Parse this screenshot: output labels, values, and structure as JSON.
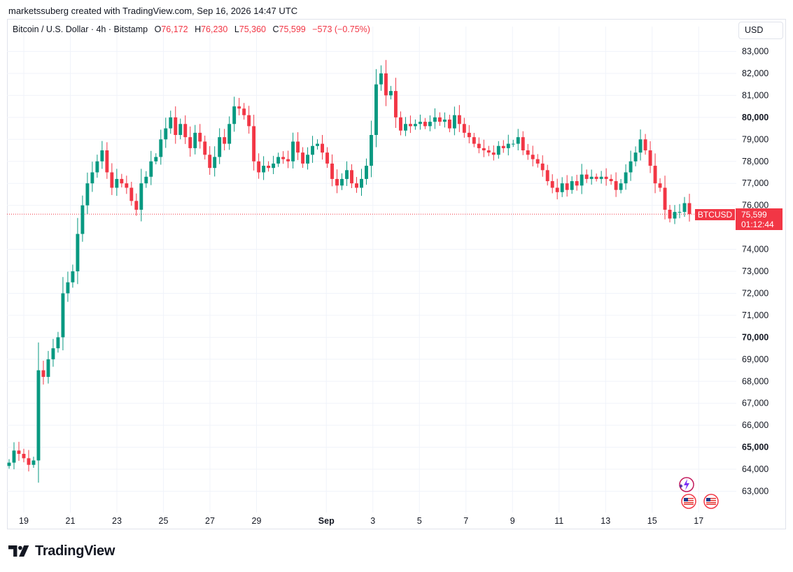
{
  "attribution": "marketssuberg created with TradingView.com, Sep 16, 2026 14:47 UTC",
  "legend": {
    "symbol": "Bitcoin / U.S. Dollar · 4h · Bitstamp",
    "o_label": "O",
    "o": "76,172",
    "h_label": "H",
    "h": "76,230",
    "l_label": "L",
    "l": "75,360",
    "c_label": "C",
    "c": "75,599",
    "change": "−573 (−0.75%)"
  },
  "currency_button": "USD",
  "brand": "TradingView",
  "last_price": {
    "symbol": "BTCUSD",
    "price": "75,599",
    "countdown": "01:12:44"
  },
  "colors": {
    "up": "#089981",
    "down": "#f23645",
    "grid": "#f0f3fa",
    "text": "#131722"
  },
  "icons": [
    "lightning-event-icon",
    "us-flag-event-icon",
    "us-flag-event-icon"
  ],
  "chart_data": {
    "type": "candlestick",
    "title": "Bitcoin / U.S. Dollar · 4h · Bitstamp",
    "ylim": [
      62200,
      83600
    ],
    "last_price_value": 75599,
    "y_ticks": [
      {
        "value": 83000,
        "label": "83,000",
        "bold": false
      },
      {
        "value": 82000,
        "label": "82,000",
        "bold": false
      },
      {
        "value": 81000,
        "label": "81,000",
        "bold": false
      },
      {
        "value": 80000,
        "label": "80,000",
        "bold": true
      },
      {
        "value": 79000,
        "label": "79,000",
        "bold": false
      },
      {
        "value": 78000,
        "label": "78,000",
        "bold": false
      },
      {
        "value": 77000,
        "label": "77,000",
        "bold": false
      },
      {
        "value": 76000,
        "label": "76,000",
        "bold": false
      },
      {
        "value": 74000,
        "label": "74,000",
        "bold": false
      },
      {
        "value": 73000,
        "label": "73,000",
        "bold": false
      },
      {
        "value": 72000,
        "label": "72,000",
        "bold": false
      },
      {
        "value": 71000,
        "label": "71,000",
        "bold": false
      },
      {
        "value": 70000,
        "label": "70,000",
        "bold": true
      },
      {
        "value": 69000,
        "label": "69,000",
        "bold": false
      },
      {
        "value": 68000,
        "label": "68,000",
        "bold": false
      },
      {
        "value": 67000,
        "label": "67,000",
        "bold": false
      },
      {
        "value": 66000,
        "label": "66,000",
        "bold": false
      },
      {
        "value": 65000,
        "label": "65,000",
        "bold": true
      },
      {
        "value": 64000,
        "label": "64,000",
        "bold": false
      },
      {
        "value": 63000,
        "label": "63,000",
        "bold": false
      }
    ],
    "x_ticks": [
      {
        "day": 1,
        "label": "19",
        "bold": false
      },
      {
        "day": 3,
        "label": "21",
        "bold": false
      },
      {
        "day": 5,
        "label": "23",
        "bold": false
      },
      {
        "day": 7,
        "label": "25",
        "bold": false
      },
      {
        "day": 9,
        "label": "27",
        "bold": false
      },
      {
        "day": 11,
        "label": "29",
        "bold": false
      },
      {
        "day": 14,
        "label": "Sep",
        "bold": true
      },
      {
        "day": 16,
        "label": "3",
        "bold": false
      },
      {
        "day": 18,
        "label": "5",
        "bold": false
      },
      {
        "day": 20,
        "label": "7",
        "bold": false
      },
      {
        "day": 22,
        "label": "9",
        "bold": false
      },
      {
        "day": 24,
        "label": "11",
        "bold": false
      },
      {
        "day": 26,
        "label": "13",
        "bold": false
      },
      {
        "day": 28,
        "label": "15",
        "bold": false
      },
      {
        "day": 30,
        "label": "17",
        "bold": false
      }
    ],
    "closes": [
      64300,
      64850,
      64700,
      64500,
      64200,
      64400,
      68500,
      68200,
      69000,
      69500,
      70000,
      72000,
      72500,
      73000,
      74700,
      76000,
      77000,
      77500,
      78000,
      78500,
      77500,
      76800,
      77200,
      77000,
      76800,
      76200,
      75800,
      77000,
      77300,
      78000,
      78200,
      79000,
      79500,
      80000,
      79200,
      79700,
      79100,
      78600,
      79300,
      78900,
      78300,
      77700,
      78200,
      79100,
      78800,
      79700,
      80500,
      80400,
      80100,
      79600,
      78000,
      77500,
      77800,
      77700,
      77900,
      78200,
      78100,
      78000,
      78900,
      78400,
      77900,
      78300,
      78700,
      78800,
      78400,
      77900,
      77200,
      76900,
      77200,
      77600,
      77000,
      76800,
      77200,
      77800,
      79200,
      81500,
      82000,
      81000,
      81200,
      80000,
      79400,
      79700,
      79600,
      79700,
      79800,
      79600,
      79800,
      80000,
      79800,
      79900,
      79500,
      80100,
      79700,
      79300,
      79100,
      78800,
      78600,
      78500,
      78400,
      78300,
      78700,
      78600,
      78800,
      78800,
      79100,
      78500,
      78300,
      78100,
      77900,
      77600,
      77100,
      76800,
      76600,
      77000,
      76700,
      77100,
      76900,
      77400,
      77200,
      77300,
      77200,
      77300,
      77200,
      77100,
      76700,
      77000,
      77500,
      78000,
      78400,
      79000,
      78500,
      77800,
      77000,
      76800,
      75800,
      75400,
      75700,
      75700,
      76100,
      75600
    ],
    "candle_spacing_days": 0.1667
  }
}
